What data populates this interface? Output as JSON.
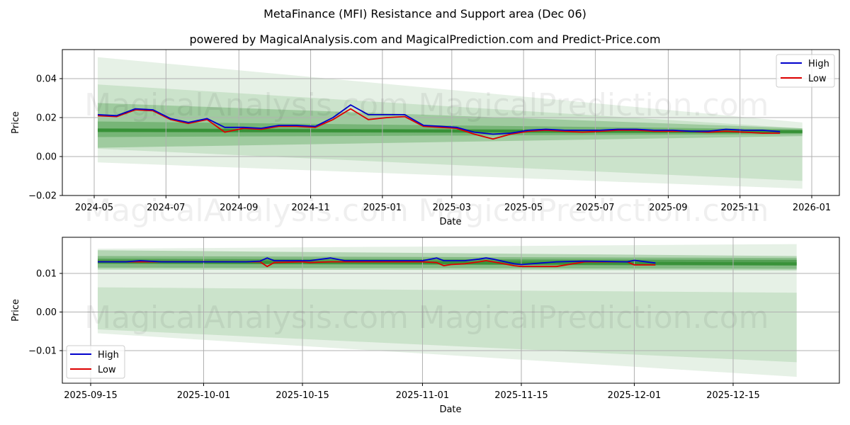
{
  "header": {
    "title": "MetaFinance (MFI) Resistance and Support area (Dec 06)",
    "subtitle": "powered by MagicalAnalysis.com and MagicalPrediction.com and Predict-Price.com"
  },
  "watermarks": [
    "MagicalAnalysis.com",
    "MagicalPrediction.com"
  ],
  "colors": {
    "high": "#0000cc",
    "low": "#dd0000",
    "band": "#2e8b2e",
    "grid": "#b0b0b0"
  },
  "chart_data": [
    {
      "type": "line",
      "title": "MetaFinance (MFI) Resistance and Support area (Dec 06)",
      "xlabel": "Date",
      "ylabel": "Price",
      "ylim": [
        -0.02,
        0.055
      ],
      "grid": true,
      "legend_position": "upper right",
      "x_ticks": [
        "2024-05",
        "2024-07",
        "2024-09",
        "2024-11",
        "2025-01",
        "2025-03",
        "2025-05",
        "2025-07",
        "2025-09",
        "2025-11",
        "2026-01"
      ],
      "y_ticks": [
        "−0.02",
        "0.00",
        "0.02",
        "0.04"
      ],
      "x": [
        "2024-05-04",
        "2024-05-20",
        "2024-06-05",
        "2024-06-20",
        "2024-07-05",
        "2024-07-20",
        "2024-08-05",
        "2024-08-20",
        "2024-09-05",
        "2024-09-20",
        "2024-10-05",
        "2024-10-20",
        "2024-11-05",
        "2024-11-20",
        "2024-12-05",
        "2024-12-20",
        "2025-01-05",
        "2025-01-20",
        "2025-02-05",
        "2025-02-20",
        "2025-03-05",
        "2025-03-20",
        "2025-04-05",
        "2025-04-20",
        "2025-05-05",
        "2025-05-20",
        "2025-06-05",
        "2025-06-20",
        "2025-07-05",
        "2025-07-20",
        "2025-08-05",
        "2025-08-20",
        "2025-09-05",
        "2025-09-20",
        "2025-10-05",
        "2025-10-20",
        "2025-11-05",
        "2025-11-20",
        "2025-12-05"
      ],
      "series": [
        {
          "name": "High",
          "values": [
            0.0215,
            0.021,
            0.0245,
            0.024,
            0.0195,
            0.0175,
            0.0195,
            0.015,
            0.015,
            0.0145,
            0.016,
            0.016,
            0.0155,
            0.02,
            0.0265,
            0.0215,
            0.0215,
            0.0215,
            0.016,
            0.0155,
            0.015,
            0.0125,
            0.0115,
            0.012,
            0.0135,
            0.014,
            0.0135,
            0.0135,
            0.0135,
            0.014,
            0.014,
            0.0135,
            0.0135,
            0.013,
            0.013,
            0.014,
            0.0135,
            0.0135,
            0.0128
          ]
        },
        {
          "name": "Low",
          "values": [
            0.021,
            0.0205,
            0.024,
            0.0235,
            0.019,
            0.017,
            0.019,
            0.0125,
            0.0145,
            0.014,
            0.0155,
            0.0155,
            0.015,
            0.019,
            0.0245,
            0.019,
            0.02,
            0.0205,
            0.0155,
            0.015,
            0.0145,
            0.0115,
            0.009,
            0.0115,
            0.013,
            0.0135,
            0.013,
            0.0125,
            0.013,
            0.0135,
            0.0135,
            0.013,
            0.013,
            0.013,
            0.0125,
            0.013,
            0.0125,
            0.012,
            0.012
          ]
        }
      ],
      "bands": {
        "x_start": "2024-05-04",
        "x_end": "2025-12-24",
        "center": [
          0.0135,
          0.0128
        ],
        "inner": [
          [
            0.0125,
            0.0145
          ],
          [
            0.012,
            0.0135
          ]
        ],
        "mid": [
          [
            0.01,
            0.018
          ],
          [
            0.0115,
            0.014
          ]
        ],
        "outer1": [
          [
            0.0045,
            0.0275
          ],
          [
            0.0105,
            0.0145
          ]
        ],
        "outer2": [
          [
            0.004,
            0.037
          ],
          [
            -0.0125,
            0.0145
          ]
        ],
        "outer3": [
          [
            -0.003,
            0.051
          ],
          [
            -0.0165,
            0.0175
          ]
        ]
      }
    },
    {
      "type": "line",
      "xlabel": "Date",
      "ylabel": "Price",
      "ylim": [
        -0.0185,
        0.0195
      ],
      "grid": true,
      "legend_position": "lower left",
      "x_ticks": [
        "2025-09-15",
        "2025-10-01",
        "2025-10-15",
        "2025-11-01",
        "2025-11-15",
        "2025-12-01",
        "2025-12-15"
      ],
      "y_ticks": [
        "−0.01",
        "0.00",
        "0.01"
      ],
      "x": [
        "2025-09-16",
        "2025-09-20",
        "2025-09-22",
        "2025-09-25",
        "2025-10-01",
        "2025-10-07",
        "2025-10-09",
        "2025-10-10",
        "2025-10-11",
        "2025-10-15",
        "2025-10-16",
        "2025-10-19",
        "2025-10-21",
        "2025-10-31",
        "2025-11-01",
        "2025-11-03",
        "2025-11-04",
        "2025-11-05",
        "2025-11-07",
        "2025-11-09",
        "2025-11-10",
        "2025-11-11",
        "2025-11-14",
        "2025-11-15",
        "2025-11-20",
        "2025-11-24",
        "2025-11-30",
        "2025-12-01",
        "2025-12-04"
      ],
      "series": [
        {
          "name": "High",
          "values": [
            0.013,
            0.013,
            0.0133,
            0.013,
            0.013,
            0.013,
            0.0132,
            0.014,
            0.0133,
            0.0133,
            0.0133,
            0.014,
            0.0133,
            0.0133,
            0.0133,
            0.014,
            0.0133,
            0.0133,
            0.0133,
            0.0137,
            0.014,
            0.0137,
            0.0125,
            0.0123,
            0.013,
            0.0132,
            0.013,
            0.0134,
            0.0127
          ]
        },
        {
          "name": "Low",
          "values": [
            0.013,
            0.013,
            0.013,
            0.013,
            0.013,
            0.013,
            0.013,
            0.0118,
            0.0128,
            0.013,
            0.0128,
            0.013,
            0.013,
            0.013,
            0.013,
            0.0128,
            0.012,
            0.0123,
            0.0125,
            0.013,
            0.0133,
            0.013,
            0.012,
            0.0118,
            0.0118,
            0.013,
            0.013,
            0.0122,
            0.0122
          ]
        }
      ],
      "bands": {
        "x_start": "2025-09-16",
        "x_end": "2025-12-24",
        "center": [
          0.013,
          0.0125
        ],
        "inner": [
          [
            0.0125,
            0.0138
          ],
          [
            0.012,
            0.0135
          ]
        ],
        "mid": [
          [
            0.0115,
            0.0145
          ],
          [
            0.0112,
            0.014
          ]
        ],
        "outer1": [
          [
            0.011,
            0.016
          ],
          [
            0.0108,
            0.0145
          ]
        ],
        "outer2": [
          [
            -0.0045,
            0.0064
          ],
          [
            -0.013,
            0.005
          ]
        ],
        "outer3": [
          [
            -0.0055,
            0.0164
          ],
          [
            -0.0168,
            0.0176
          ]
        ]
      }
    }
  ],
  "legend": {
    "high_label": "High",
    "low_label": "Low"
  },
  "top_chart": {
    "xlabel": "Date",
    "ylabel": "Price"
  },
  "bottom_chart": {
    "xlabel": "Date",
    "ylabel": "Price"
  }
}
